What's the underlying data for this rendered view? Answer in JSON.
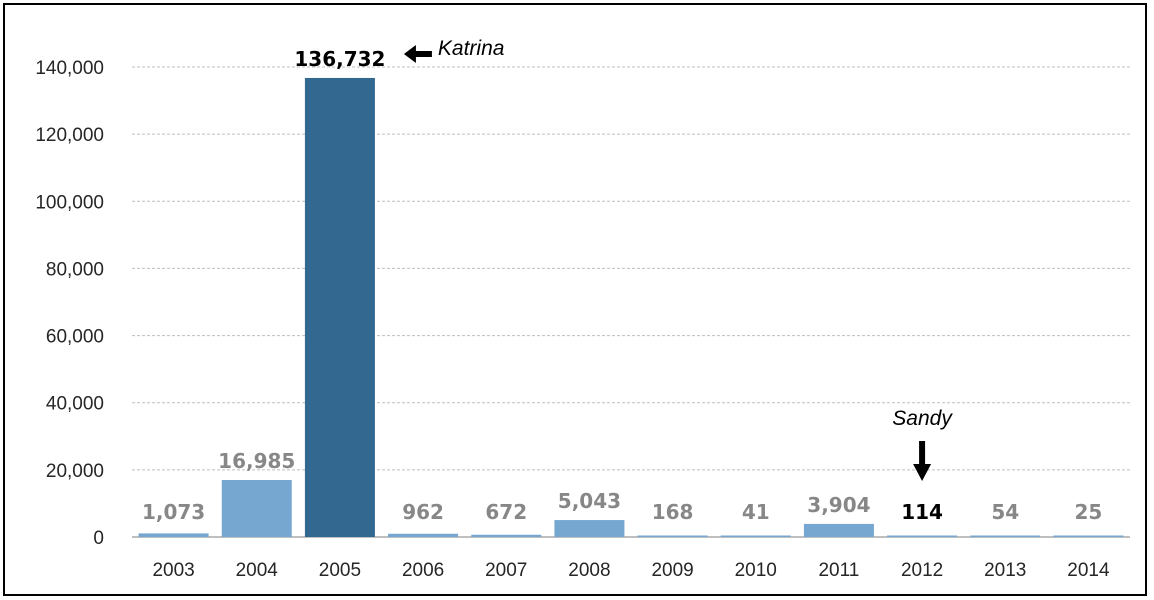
{
  "chart_data": {
    "type": "bar",
    "title": "",
    "xlabel": "",
    "ylabel": "",
    "categories": [
      "2003",
      "2004",
      "2005",
      "2006",
      "2007",
      "2008",
      "2009",
      "2010",
      "2011",
      "2012",
      "2013",
      "2014"
    ],
    "values": [
      1073,
      16985,
      136732,
      962,
      672,
      5043,
      168,
      41,
      3904,
      114,
      54,
      25
    ],
    "data_labels": [
      "1,073",
      "16,985",
      "136,732",
      "962",
      "672",
      "5,043",
      "168",
      "41",
      "3,904",
      "114",
      "54",
      "25"
    ],
    "ylim": [
      0,
      140000
    ],
    "yticks": [
      0,
      20000,
      40000,
      60000,
      80000,
      100000,
      120000,
      140000
    ],
    "ytick_labels": [
      "0",
      "20,000",
      "40,000",
      "60,000",
      "80,000",
      "100,000",
      "120,000",
      "140,000"
    ],
    "grid": true,
    "legend": "none",
    "colors": {
      "bar_default": "#75a7d1",
      "bar_highlight": "#336891",
      "label_default": "#878787",
      "label_emphasis": "#000000",
      "gridline": "#bfbfbf",
      "axis": "#7f7f7f"
    },
    "bar_highlight_index": 2,
    "label_emphasis_indices": [
      2,
      9
    ],
    "annotations": [
      {
        "text": "Katrina",
        "target_index": 2,
        "arrow": "left-arrow-icon"
      },
      {
        "text": "Sandy",
        "target_index": 9,
        "arrow": "down-arrow-icon"
      }
    ]
  }
}
